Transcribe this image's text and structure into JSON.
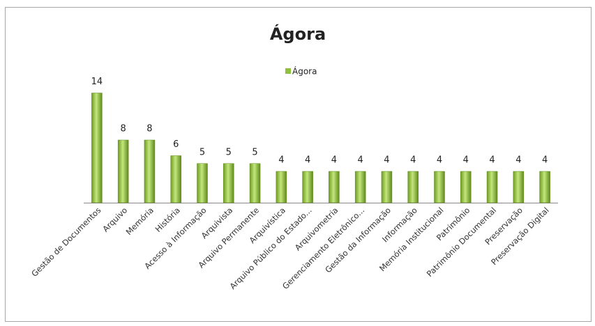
{
  "chart_data": {
    "type": "bar",
    "title": "Ágora",
    "categories": [
      "Gestão de Documentos",
      "Arquivo",
      "Memória",
      "História",
      "Acesso à Informação",
      "Arquivista",
      "Arquivo Permanente",
      "Arquivística",
      "Arquivo Público do Estado...",
      "Arquivometria",
      "Gerenciamento Eletrônico...",
      "Gestão da Informação",
      "Informação",
      "Memória Institucional",
      "Patrimônio",
      "Patrimônio Documental",
      "Preservação",
      "Preservação Digital"
    ],
    "series": [
      {
        "name": "Ágora",
        "color": "#8fc23a",
        "values": [
          14,
          8,
          8,
          6,
          5,
          5,
          5,
          4,
          4,
          4,
          4,
          4,
          4,
          4,
          4,
          4,
          4,
          4
        ]
      }
    ],
    "ylim": [
      0,
      16
    ],
    "legend": "top"
  }
}
